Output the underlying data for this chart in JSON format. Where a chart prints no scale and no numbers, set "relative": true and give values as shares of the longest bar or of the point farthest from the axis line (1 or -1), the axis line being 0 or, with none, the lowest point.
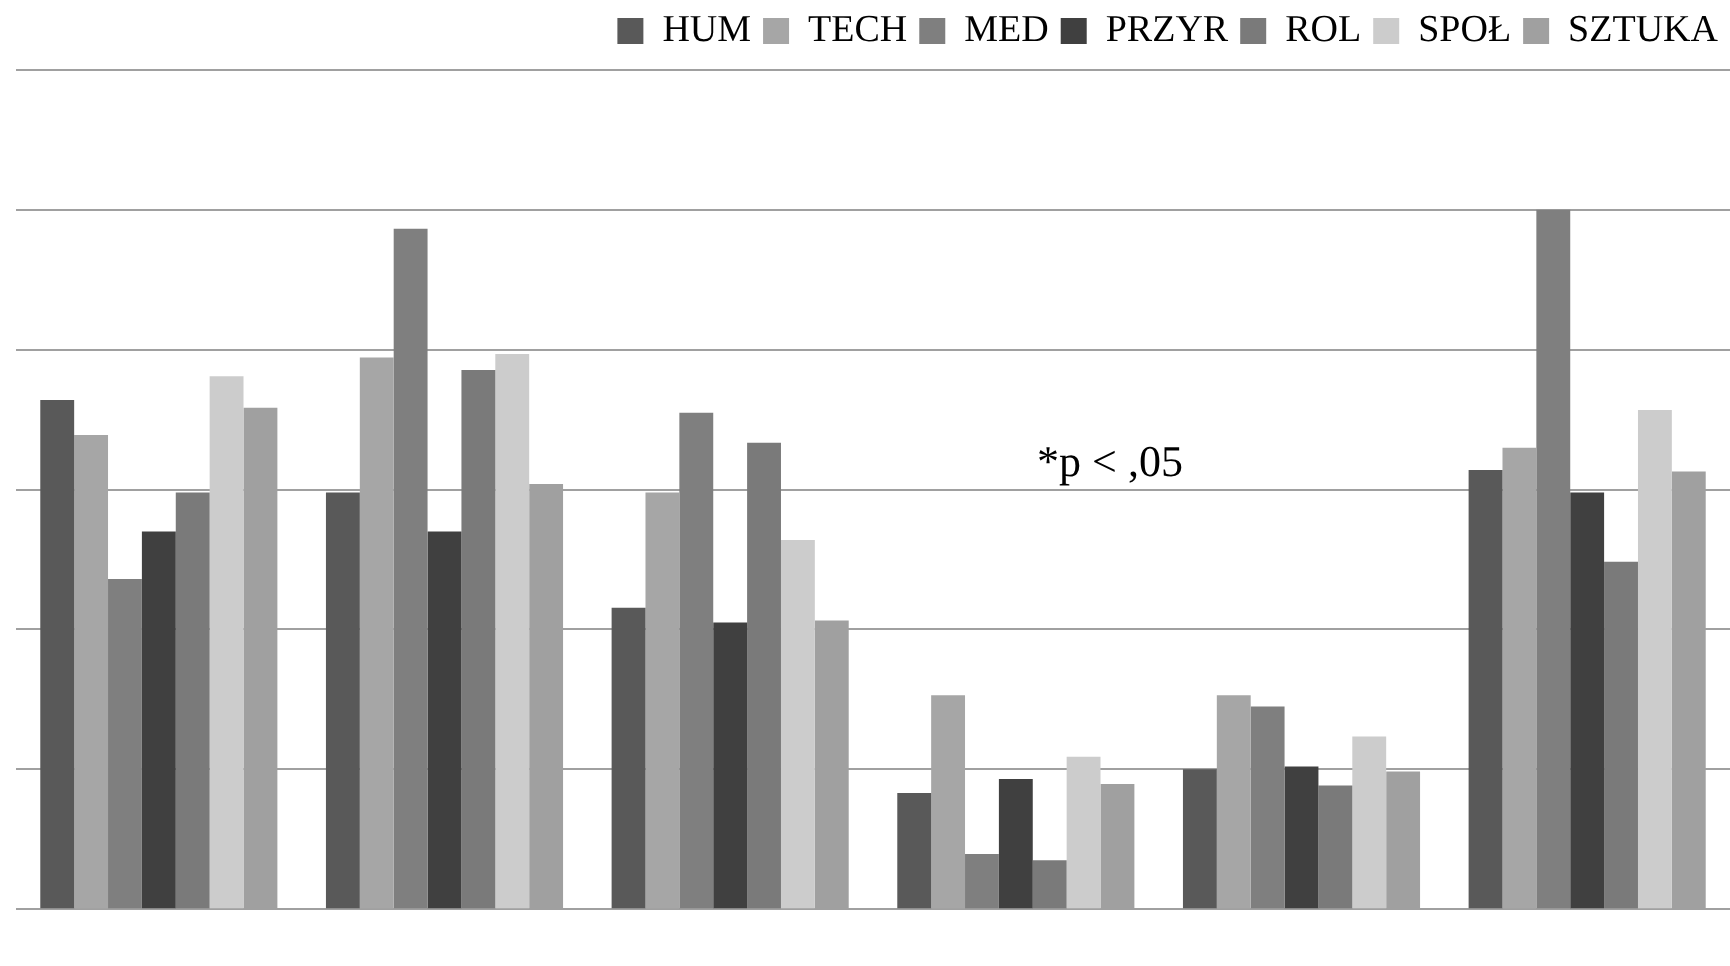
{
  "chart_data": {
    "type": "bar",
    "relative": true,
    "categories": [
      null,
      null,
      null,
      null,
      null,
      null
    ],
    "series": [
      {
        "name": "HUM",
        "color": "#595959",
        "values": [
          0.728,
          0.596,
          0.431,
          0.166,
          0.2,
          0.628
        ]
      },
      {
        "name": "TECH",
        "color": "#a6a6a6",
        "values": [
          0.678,
          0.789,
          0.596,
          0.306,
          0.306,
          0.66
        ]
      },
      {
        "name": "MED",
        "color": "#7f7f7f",
        "values": [
          0.472,
          0.973,
          0.71,
          0.079,
          0.29,
          1
        ]
      },
      {
        "name": "PRZYR",
        "color": "#404040",
        "values": [
          0.54,
          0.54,
          0.41,
          0.186,
          0.204,
          0.596
        ]
      },
      {
        "name": "ROL",
        "color": "#7a7a7a",
        "values": [
          0.596,
          0.771,
          0.667,
          0.07,
          0.177,
          0.497
        ]
      },
      {
        "name": "SPOŁ",
        "color": "#cccccc",
        "values": [
          0.762,
          0.794,
          0.528,
          0.218,
          0.247,
          0.714
        ]
      },
      {
        "name": "SZTUKA",
        "color": "#a0a0a0",
        "values": [
          0.717,
          0.608,
          0.413,
          0.179,
          0.197,
          0.626
        ]
      }
    ],
    "annotations": [
      "*p < ,05"
    ],
    "grid": "y",
    "legend": "top"
  }
}
